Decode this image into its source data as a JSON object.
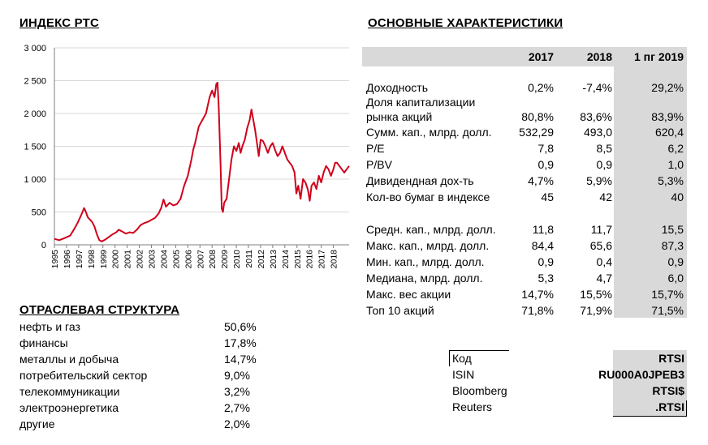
{
  "chart_section": {
    "title": "ИНДЕКС РТС"
  },
  "chart_data": {
    "type": "line",
    "title": "ИНДЕКС РТС",
    "ylim": [
      0,
      3000
    ],
    "y_ticks": [
      "0",
      "500",
      "1 000",
      "1 500",
      "2 000",
      "2 500",
      "3 000"
    ],
    "x_tick_labels": [
      "1995",
      "1996",
      "1997",
      "1998",
      "1999",
      "2000",
      "2001",
      "2002",
      "2003",
      "2004",
      "2005",
      "2006",
      "2007",
      "2008",
      "2009",
      "2010",
      "2011",
      "2012",
      "2013",
      "2014",
      "2015",
      "2016",
      "2017",
      "2018"
    ],
    "xlim": [
      1995.0,
      2019.3
    ],
    "grid": "horizontal",
    "series": [
      {
        "color": "#d0021b",
        "x": [
          1995.0,
          1995.4,
          1995.8,
          1996.3,
          1996.6,
          1996.9,
          1997.2,
          1997.45,
          1997.6,
          1997.75,
          1997.9,
          1998.1,
          1998.3,
          1998.5,
          1998.7,
          1998.9,
          1999.2,
          1999.5,
          1999.8,
          2000.1,
          2000.3,
          2000.6,
          2000.9,
          2001.2,
          2001.5,
          2001.8,
          2002.1,
          2002.4,
          2002.7,
          2003.0,
          2003.3,
          2003.6,
          2003.8,
          2004.0,
          2004.2,
          2004.5,
          2004.8,
          2005.1,
          2005.4,
          2005.7,
          2006.0,
          2006.3,
          2006.45,
          2006.6,
          2006.9,
          2007.2,
          2007.5,
          2007.8,
          2008.0,
          2008.2,
          2008.35,
          2008.45,
          2008.55,
          2008.7,
          2008.8,
          2008.9,
          2009.0,
          2009.2,
          2009.4,
          2009.6,
          2009.8,
          2010.0,
          2010.2,
          2010.35,
          2010.5,
          2010.7,
          2010.9,
          2011.1,
          2011.25,
          2011.4,
          2011.55,
          2011.7,
          2011.85,
          2012.0,
          2012.2,
          2012.4,
          2012.6,
          2012.8,
          2013.0,
          2013.2,
          2013.4,
          2013.6,
          2013.8,
          2014.0,
          2014.2,
          2014.4,
          2014.6,
          2014.8,
          2014.95,
          2015.1,
          2015.3,
          2015.5,
          2015.7,
          2015.9,
          2016.05,
          2016.2,
          2016.4,
          2016.6,
          2016.8,
          2017.0,
          2017.2,
          2017.4,
          2017.6,
          2017.8,
          2018.0,
          2018.15,
          2018.3,
          2018.5,
          2018.7,
          2018.9,
          2019.1,
          2019.3
        ],
        "values": [
          90,
          70,
          100,
          140,
          230,
          330,
          450,
          560,
          500,
          420,
          390,
          350,
          280,
          160,
          70,
          50,
          80,
          120,
          160,
          190,
          230,
          200,
          170,
          190,
          180,
          230,
          300,
          330,
          350,
          380,
          410,
          480,
          560,
          690,
          580,
          640,
          600,
          620,
          700,
          900,
          1050,
          1300,
          1450,
          1550,
          1800,
          1900,
          2000,
          2250,
          2350,
          2250,
          2450,
          2470,
          2100,
          1200,
          550,
          500,
          640,
          700,
          1000,
          1300,
          1500,
          1430,
          1550,
          1400,
          1500,
          1600,
          1780,
          1900,
          2060,
          1900,
          1750,
          1550,
          1350,
          1600,
          1580,
          1500,
          1400,
          1500,
          1550,
          1440,
          1350,
          1400,
          1500,
          1400,
          1300,
          1250,
          1200,
          1100,
          780,
          900,
          700,
          1000,
          950,
          840,
          670,
          900,
          950,
          850,
          1050,
          950,
          1100,
          1200,
          1150,
          1050,
          1150,
          1250,
          1250,
          1200,
          1150,
          1100,
          1150,
          1200
        ]
      }
    ]
  },
  "main": {
    "title": "ОСНОВНЫЕ ХАРАКТЕРИСТИКИ",
    "columns": [
      "2017",
      "2018",
      "1 пг 2019"
    ],
    "rows": [
      {
        "label": "Доходность",
        "v": [
          "0,2%",
          "-7,4%",
          "29,2%"
        ]
      },
      {
        "label": "Доля капитализации",
        "label2": "рынка акций",
        "v": [
          "80,8%",
          "83,6%",
          "83,9%"
        ]
      },
      {
        "label": "Сумм. кап., млрд. долл.",
        "v": [
          "532,29",
          "493,0",
          "620,4"
        ]
      },
      {
        "label": "P/E",
        "v": [
          "7,8",
          "8,5",
          "6,2"
        ]
      },
      {
        "label": "P/BV",
        "v": [
          "0,9",
          "0,9",
          "1,0"
        ]
      },
      {
        "label": "Дивидендная дох-ть",
        "v": [
          "4,7%",
          "5,9%",
          "5,3%"
        ]
      },
      {
        "label": "Кол-во бумаг в индексе",
        "v": [
          "45",
          "42",
          "40"
        ]
      },
      {
        "label": "Средн. кап., млрд. долл.",
        "v": [
          "11,8",
          "11,7",
          "15,5"
        ]
      },
      {
        "label": "Макс. кап., млрд. долл.",
        "v": [
          "84,4",
          "65,6",
          "87,3"
        ]
      },
      {
        "label": "Мин. кап., млрд. долл.",
        "v": [
          "0,9",
          "0,4",
          "0,9"
        ]
      },
      {
        "label": "Медиана, млрд. долл.",
        "v": [
          "5,3",
          "4,7",
          "6,0"
        ]
      },
      {
        "label": "Макс. вес акции",
        "v": [
          "14,7%",
          "15,5%",
          "15,7%"
        ]
      },
      {
        "label": "Топ 10 акций",
        "v": [
          "71,8%",
          "71,9%",
          "71,5%"
        ]
      }
    ]
  },
  "sectors": {
    "title": "ОТРАСЛЕВАЯ СТРУКТУРА",
    "items": [
      {
        "name": "нефть и газ",
        "value": "50,6%"
      },
      {
        "name": "финансы",
        "value": "17,8%"
      },
      {
        "name": "металлы и добыча",
        "value": "14,7%"
      },
      {
        "name": "потребительский сектор",
        "value": "9,0%"
      },
      {
        "name": "телекоммуникации",
        "value": "3,2%"
      },
      {
        "name": "электроэнергетика",
        "value": "2,7%"
      },
      {
        "name": "другие",
        "value": "2,0%"
      }
    ]
  },
  "codes": [
    {
      "name": "Код",
      "value": "RTSI"
    },
    {
      "name": "ISIN",
      "value": "RU000A0JPEB3"
    },
    {
      "name": "Bloomberg",
      "value": "RTSI$"
    },
    {
      "name": "Reuters",
      "value": ".RTSI"
    }
  ]
}
